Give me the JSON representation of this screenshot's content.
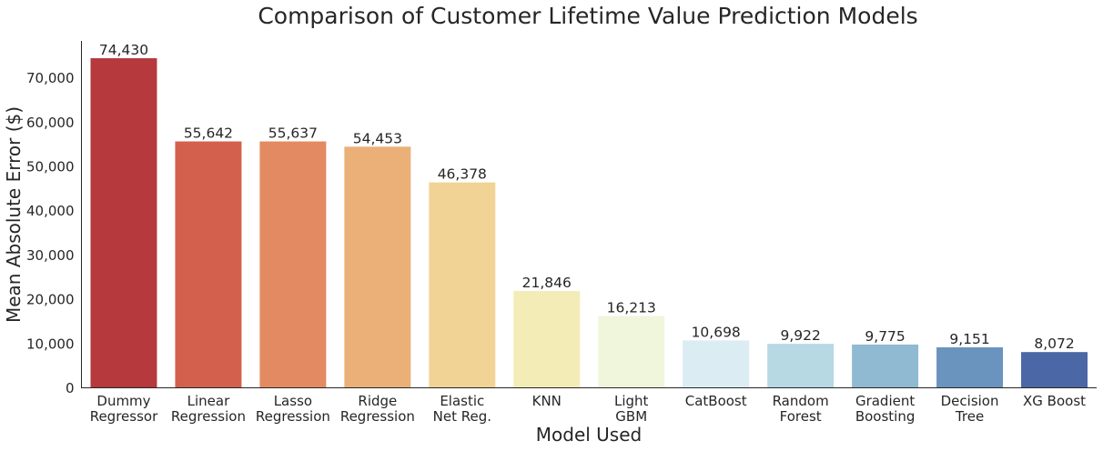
{
  "chart_data": {
    "type": "bar",
    "title": "Comparison of Customer Lifetime Value Prediction Models",
    "xlabel": "Model Used",
    "ylabel": "Mean Absolute Error ($)",
    "ylim": [
      0,
      78000
    ],
    "yticks": [
      0,
      10000,
      20000,
      30000,
      40000,
      50000,
      60000,
      70000
    ],
    "ytick_labels": [
      "0",
      "10,000",
      "20,000",
      "30,000",
      "40,000",
      "50,000",
      "60,000",
      "70,000"
    ],
    "grid": false,
    "categories": [
      [
        "Dummy",
        "Regressor"
      ],
      [
        "Linear",
        "Regression"
      ],
      [
        "Lasso",
        "Regression"
      ],
      [
        "Ridge",
        "Regression"
      ],
      [
        "Elastic",
        "Net Reg."
      ],
      [
        "KNN"
      ],
      [
        "Light",
        "GBM"
      ],
      [
        "CatBoost"
      ],
      [
        "Random",
        "Forest"
      ],
      [
        "Gradient",
        "Boosting"
      ],
      [
        "Decision",
        "Tree"
      ],
      [
        "XG Boost"
      ]
    ],
    "values": [
      74430,
      55642,
      55637,
      54453,
      46378,
      21846,
      16213,
      10698,
      9922,
      9775,
      9151,
      8072
    ],
    "value_labels": [
      "74,430",
      "55,642",
      "55,637",
      "54,453",
      "46,378",
      "21,846",
      "16,213",
      "10,698",
      "9,922",
      "9,775",
      "9,151",
      "8,072"
    ],
    "colors": [
      "#b5393d",
      "#d3604c",
      "#e38a62",
      "#eab077",
      "#f1d395",
      "#f3ecb6",
      "#eff6dc",
      "#dbedf2",
      "#b6d9e4",
      "#90bad1",
      "#6a93bd",
      "#4b67a5"
    ]
  }
}
